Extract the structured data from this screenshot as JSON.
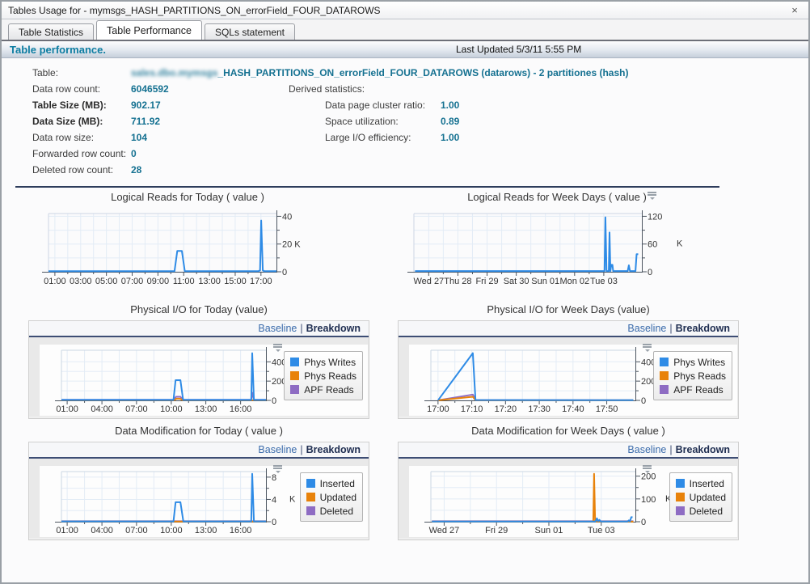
{
  "window": {
    "title": "Tables Usage for - mymsgs_HASH_PARTITIONS_ON_errorField_FOUR_DATAROWS",
    "close_label": "×"
  },
  "tabs": [
    {
      "label": "Table Statistics",
      "active": false
    },
    {
      "label": "Table Performance",
      "active": true
    },
    {
      "label": "SQLs statement",
      "active": false
    }
  ],
  "header": {
    "title": "Table performance.",
    "last_updated": "Last Updated 5/3/11 5:55 PM"
  },
  "stats": {
    "table_label": "Table:",
    "table_value_redacted": "sales.dbo.mymsgs",
    "table_value": "_HASH_PARTITIONS_ON_errorField_FOUR_DATAROWS (datarows) - 2 partitiones (hash)",
    "rows": [
      {
        "label": "Data row count:",
        "value": "6046592",
        "bold": false
      },
      {
        "label": "Table Size (MB):",
        "value": "902.17",
        "bold": true
      },
      {
        "label": "Data Size (MB):",
        "value": "711.92",
        "bold": true
      },
      {
        "label": "Data row size:",
        "value": "104",
        "bold": false
      },
      {
        "label": "Forwarded row count:",
        "value": "0",
        "bold": false
      },
      {
        "label": "Deleted row count:",
        "value": "28",
        "bold": false
      }
    ],
    "derived": {
      "title": "Derived statistics:",
      "rows": [
        {
          "label": "Data page cluster ratio:",
          "value": "1.00"
        },
        {
          "label": "Space utilization:",
          "value": "0.89"
        },
        {
          "label": "Large I/O efficiency:",
          "value": "1.00"
        }
      ]
    }
  },
  "links": {
    "baseline": "Baseline",
    "separator": "|",
    "breakdown": "Breakdown"
  },
  "colors": {
    "accent_teal": "#157191",
    "link_blue": "#3a6bab",
    "navy": "#2e3d5c",
    "series_blue": "#2e8be6",
    "series_orange": "#e8820a",
    "series_purple": "#8e6cc3"
  },
  "chart_data": [
    {
      "type": "line",
      "layout": "wide",
      "menu_icon": false,
      "legend": false,
      "title": "Logical Reads for Today ( value )",
      "xlabel": "",
      "ylabel": "K",
      "ylim": [
        0,
        42
      ],
      "yticks": [
        {
          "v": 0,
          "label": "0"
        },
        {
          "v": 20,
          "label": "20 K"
        },
        {
          "v": 40,
          "label": "40"
        }
      ],
      "xticks": [
        {
          "f": 0.028,
          "label": "01:00"
        },
        {
          "f": 0.141,
          "label": "03:00"
        },
        {
          "f": 0.254,
          "label": "05:00"
        },
        {
          "f": 0.367,
          "label": "07:00"
        },
        {
          "f": 0.48,
          "label": "09:00"
        },
        {
          "f": 0.593,
          "label": "11:00"
        },
        {
          "f": 0.706,
          "label": "13:00"
        },
        {
          "f": 0.819,
          "label": "15:00"
        },
        {
          "f": 0.932,
          "label": "17:00"
        }
      ],
      "series": [
        {
          "name": "value",
          "color": "#2e8be6",
          "points": [
            [
              0.0,
              0.4
            ],
            [
              0.54,
              0.4
            ],
            [
              0.553,
              0.5
            ],
            [
              0.565,
              15
            ],
            [
              0.585,
              15
            ],
            [
              0.598,
              0.5
            ],
            [
              0.605,
              0.4
            ],
            [
              0.92,
              0.4
            ],
            [
              0.928,
              1
            ],
            [
              0.933,
              37
            ],
            [
              0.94,
              1
            ],
            [
              0.947,
              0.4
            ],
            [
              1.0,
              0.4
            ]
          ]
        }
      ]
    },
    {
      "type": "line",
      "layout": "wide",
      "menu_icon": true,
      "legend": false,
      "title": "Logical Reads for Week Days ( value )",
      "xlabel": "",
      "ylabel": "K",
      "ylim": [
        0,
        126
      ],
      "unit": {
        "text": "K",
        "at": 60,
        "dx": 36,
        "rot": false
      },
      "yticks": [
        {
          "v": 0,
          "label": "0"
        },
        {
          "v": 60,
          "label": "60"
        },
        {
          "v": 120,
          "label": "120"
        }
      ],
      "xticks": [
        {
          "f": 0.065,
          "label": "Wed 27"
        },
        {
          "f": 0.193,
          "label": "Thu 28"
        },
        {
          "f": 0.321,
          "label": "Fri 29"
        },
        {
          "f": 0.449,
          "label": "Sat 30"
        },
        {
          "f": 0.577,
          "label": "Sun 01"
        },
        {
          "f": 0.705,
          "label": "Mon 02"
        },
        {
          "f": 0.833,
          "label": "Tue 03"
        }
      ],
      "series": [
        {
          "name": "value",
          "color": "#2e8be6",
          "points": [
            [
              0.005,
              1.5
            ],
            [
              0.836,
              1.5
            ],
            [
              0.84,
              118
            ],
            [
              0.845,
              1.5
            ],
            [
              0.855,
              1.5
            ],
            [
              0.858,
              85
            ],
            [
              0.862,
              1.5
            ],
            [
              0.866,
              15
            ],
            [
              0.871,
              15
            ],
            [
              0.874,
              1.5
            ],
            [
              0.938,
              1.5
            ],
            [
              0.943,
              14
            ],
            [
              0.948,
              1.5
            ],
            [
              0.972,
              1.5
            ],
            [
              0.977,
              38
            ],
            [
              0.984,
              38
            ]
          ]
        }
      ]
    },
    {
      "type": "line",
      "layout": "panel",
      "menu_icon": true,
      "legend": true,
      "title": "Physical I/O for Today (value)",
      "xlabel": "",
      "ylabel": "count",
      "ylim": [
        0,
        520
      ],
      "unit": {
        "text": "count",
        "at": 260,
        "dx": 30,
        "rot": true
      },
      "yticks": [
        {
          "v": 0,
          "label": "0"
        },
        {
          "v": 200,
          "label": "200"
        },
        {
          "v": 400,
          "label": "400"
        }
      ],
      "xticks": [
        {
          "f": 0.028,
          "label": "01:00"
        },
        {
          "f": 0.198,
          "label": "04:00"
        },
        {
          "f": 0.367,
          "label": "07:00"
        },
        {
          "f": 0.537,
          "label": "10:00"
        },
        {
          "f": 0.706,
          "label": "13:00"
        },
        {
          "f": 0.876,
          "label": "16:00"
        }
      ],
      "series": [
        {
          "name": "Phys Writes",
          "color": "#2e8be6",
          "points": [
            [
              0.0,
              5
            ],
            [
              0.548,
              5
            ],
            [
              0.558,
              210
            ],
            [
              0.582,
              210
            ],
            [
              0.595,
              5
            ],
            [
              0.928,
              5
            ],
            [
              0.933,
              490
            ],
            [
              0.941,
              5
            ],
            [
              1.0,
              5
            ]
          ]
        },
        {
          "name": "Phys Reads",
          "color": "#e8820a",
          "points": [
            [
              0.0,
              3
            ],
            [
              0.552,
              3
            ],
            [
              0.562,
              18
            ],
            [
              0.58,
              18
            ],
            [
              0.592,
              3
            ],
            [
              1.0,
              3
            ]
          ]
        },
        {
          "name": "APF Reads",
          "color": "#8e6cc3",
          "points": [
            [
              0.0,
              6
            ],
            [
              0.55,
              6
            ],
            [
              0.56,
              38
            ],
            [
              0.582,
              38
            ],
            [
              0.594,
              6
            ],
            [
              0.928,
              6
            ],
            [
              0.933,
              80
            ],
            [
              0.941,
              6
            ],
            [
              1.0,
              6
            ]
          ]
        }
      ]
    },
    {
      "type": "line",
      "layout": "panel",
      "menu_icon": true,
      "legend": true,
      "title": "Physical I/O for Week Days (value)",
      "xlabel": "",
      "ylabel": "count",
      "ylim": [
        0,
        520
      ],
      "unit": {
        "text": "count",
        "at": 260,
        "dx": 30,
        "rot": true
      },
      "yticks": [
        {
          "v": 0,
          "label": "0"
        },
        {
          "v": 200,
          "label": "200"
        },
        {
          "v": 400,
          "label": "400"
        }
      ],
      "xticks": [
        {
          "f": 0.035,
          "label": "17:00"
        },
        {
          "f": 0.2,
          "label": "17:10"
        },
        {
          "f": 0.365,
          "label": "17:20"
        },
        {
          "f": 0.53,
          "label": "17:30"
        },
        {
          "f": 0.695,
          "label": "17:40"
        },
        {
          "f": 0.86,
          "label": "17:50"
        }
      ],
      "series": [
        {
          "name": "Phys Writes",
          "color": "#2e8be6",
          "points": [
            [
              0.035,
              2
            ],
            [
              0.205,
              490
            ],
            [
              0.218,
              4
            ],
            [
              0.99,
              2
            ]
          ]
        },
        {
          "name": "Phys Reads",
          "color": "#e8820a",
          "points": [
            [
              0.035,
              1
            ],
            [
              0.205,
              38
            ],
            [
              0.218,
              2
            ],
            [
              0.99,
              1
            ]
          ]
        },
        {
          "name": "APF Reads",
          "color": "#8e6cc3",
          "points": [
            [
              0.035,
              2
            ],
            [
              0.205,
              60
            ],
            [
              0.218,
              3
            ],
            [
              0.99,
              2
            ]
          ]
        }
      ]
    },
    {
      "type": "line",
      "layout": "panel",
      "menu_icon": true,
      "legend": true,
      "title": "Data Modification for Today ( value )",
      "xlabel": "",
      "ylabel": "K",
      "ylim": [
        0,
        9
      ],
      "unit": {
        "text": "K",
        "at": 4,
        "dx": 22,
        "rot": false
      },
      "yticks": [
        {
          "v": 0,
          "label": "0"
        },
        {
          "v": 4,
          "label": "4"
        },
        {
          "v": 8,
          "label": "8"
        }
      ],
      "xticks": [
        {
          "f": 0.028,
          "label": "01:00"
        },
        {
          "f": 0.198,
          "label": "04:00"
        },
        {
          "f": 0.367,
          "label": "07:00"
        },
        {
          "f": 0.537,
          "label": "10:00"
        },
        {
          "f": 0.706,
          "label": "13:00"
        },
        {
          "f": 0.876,
          "label": "16:00"
        }
      ],
      "series": [
        {
          "name": "Inserted",
          "color": "#2e8be6",
          "points": [
            [
              0.0,
              0.06
            ],
            [
              0.548,
              0.06
            ],
            [
              0.558,
              3.5
            ],
            [
              0.582,
              3.5
            ],
            [
              0.596,
              0.06
            ],
            [
              0.928,
              0.06
            ],
            [
              0.933,
              8.6
            ],
            [
              0.941,
              0.06
            ],
            [
              1.0,
              0.06
            ]
          ]
        },
        {
          "name": "Updated",
          "color": "#e8820a",
          "points": [
            [
              0.0,
              0.03
            ],
            [
              1.0,
              0.03
            ]
          ]
        },
        {
          "name": "Deleted",
          "color": "#8e6cc3",
          "points": [
            [
              0.0,
              0.08
            ],
            [
              1.0,
              0.08
            ]
          ]
        }
      ]
    },
    {
      "type": "line",
      "layout": "panel",
      "menu_icon": true,
      "legend": true,
      "title": "Data Modification for Week Days ( value )",
      "xlabel": "",
      "ylabel": "K",
      "ylim": [
        0,
        220
      ],
      "unit": {
        "text": "K",
        "at": 100,
        "dx": 30,
        "rot": false
      },
      "yticks": [
        {
          "v": 0,
          "label": "0"
        },
        {
          "v": 100,
          "label": "100"
        },
        {
          "v": 200,
          "label": "200"
        }
      ],
      "xticks": [
        {
          "f": 0.065,
          "label": "Wed 27"
        },
        {
          "f": 0.321,
          "label": "Fri 29"
        },
        {
          "f": 0.577,
          "label": "Sun 01"
        },
        {
          "f": 0.833,
          "label": "Tue 03"
        }
      ],
      "series": [
        {
          "name": "Inserted",
          "color": "#2e8be6",
          "points": [
            [
              0.005,
              1
            ],
            [
              0.805,
              1
            ],
            [
              0.812,
              15
            ],
            [
              0.818,
              2
            ],
            [
              0.824,
              8
            ],
            [
              0.83,
              1
            ],
            [
              0.962,
              1
            ],
            [
              0.968,
              6
            ],
            [
              0.973,
              1
            ],
            [
              0.98,
              20
            ],
            [
              0.986,
              20
            ]
          ]
        },
        {
          "name": "Updated",
          "color": "#e8820a",
          "points": [
            [
              0.005,
              0.5
            ],
            [
              0.794,
              0.5
            ],
            [
              0.798,
              210
            ],
            [
              0.803,
              0.5
            ],
            [
              0.99,
              0.5
            ]
          ]
        },
        {
          "name": "Deleted",
          "color": "#8e6cc3",
          "points": [
            [
              0.005,
              2
            ],
            [
              0.99,
              2
            ]
          ]
        }
      ]
    }
  ]
}
